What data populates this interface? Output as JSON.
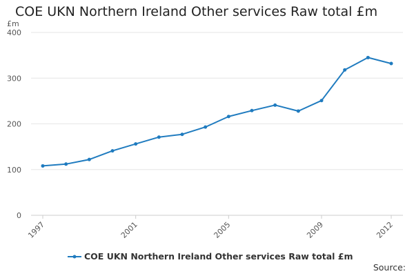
{
  "chart_data": {
    "type": "line",
    "title": "COE UKN Northern Ireland Other services Raw total £m",
    "ylabel": "£m",
    "xlabel": "",
    "ylim": [
      0,
      400
    ],
    "xlim": [
      1997,
      2012
    ],
    "yticks": [
      0,
      100,
      200,
      300,
      400
    ],
    "xticks": [
      1997,
      2001,
      2005,
      2009,
      2012
    ],
    "grid": true,
    "legend_position": "bottom",
    "series": [
      {
        "name": "COE UKN Northern Ireland Other services Raw total £m",
        "color": "#1f7bbf",
        "x": [
          1997,
          1998,
          1999,
          2000,
          2001,
          2002,
          2003,
          2004,
          2005,
          2006,
          2007,
          2008,
          2009,
          2010,
          2011,
          2012
        ],
        "y": [
          108,
          112,
          122,
          141,
          156,
          171,
          177,
          193,
          216,
          229,
          241,
          228,
          251,
          318,
          345,
          332
        ]
      }
    ]
  },
  "source_label": "Source:"
}
